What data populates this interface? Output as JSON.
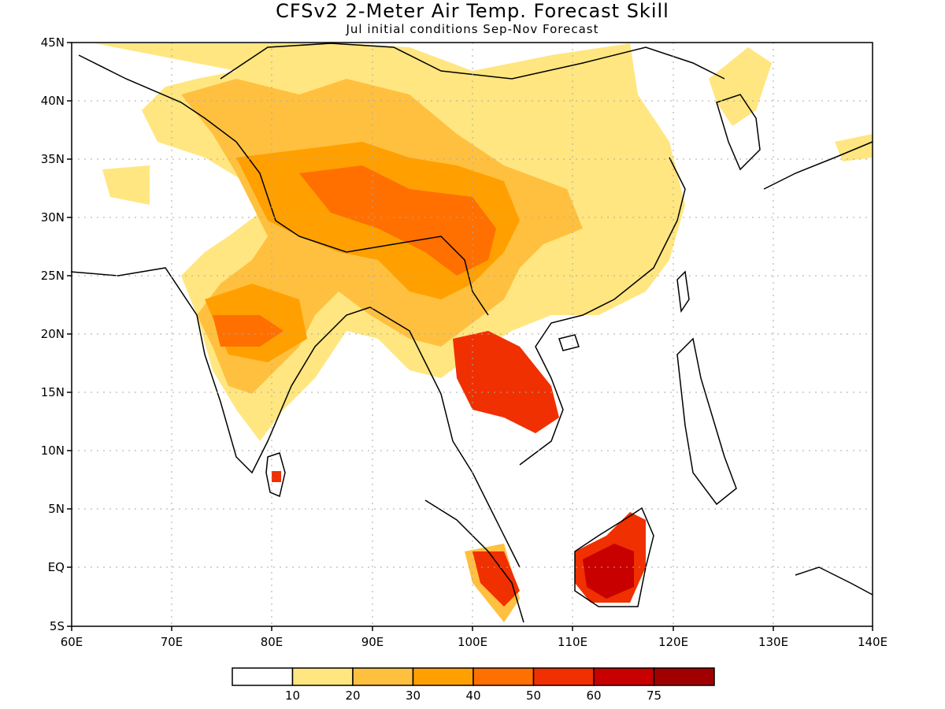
{
  "title": "CFSv2 2-Meter Air Temp. Forecast Skill",
  "subtitle": "Jul initial conditions  Sep-Nov Forecast",
  "map": {
    "lon_range": [
      60,
      140
    ],
    "lat_range": [
      -5,
      45
    ],
    "x_ticks": [
      "60E",
      "70E",
      "80E",
      "90E",
      "100E",
      "110E",
      "120E",
      "130E",
      "140E"
    ],
    "y_ticks": [
      "45N",
      "40N",
      "35N",
      "30N",
      "25N",
      "20N",
      "15N",
      "10N",
      "5N",
      "EQ",
      "5S"
    ],
    "grid": true
  },
  "colorbar": {
    "colors": [
      "#ffffff",
      "#ffe680",
      "#ffc040",
      "#ffa000",
      "#ff7000",
      "#f03000",
      "#c80000",
      "#a00000"
    ],
    "labels": [
      "10",
      "20",
      "30",
      "40",
      "50",
      "60",
      "75"
    ]
  }
}
